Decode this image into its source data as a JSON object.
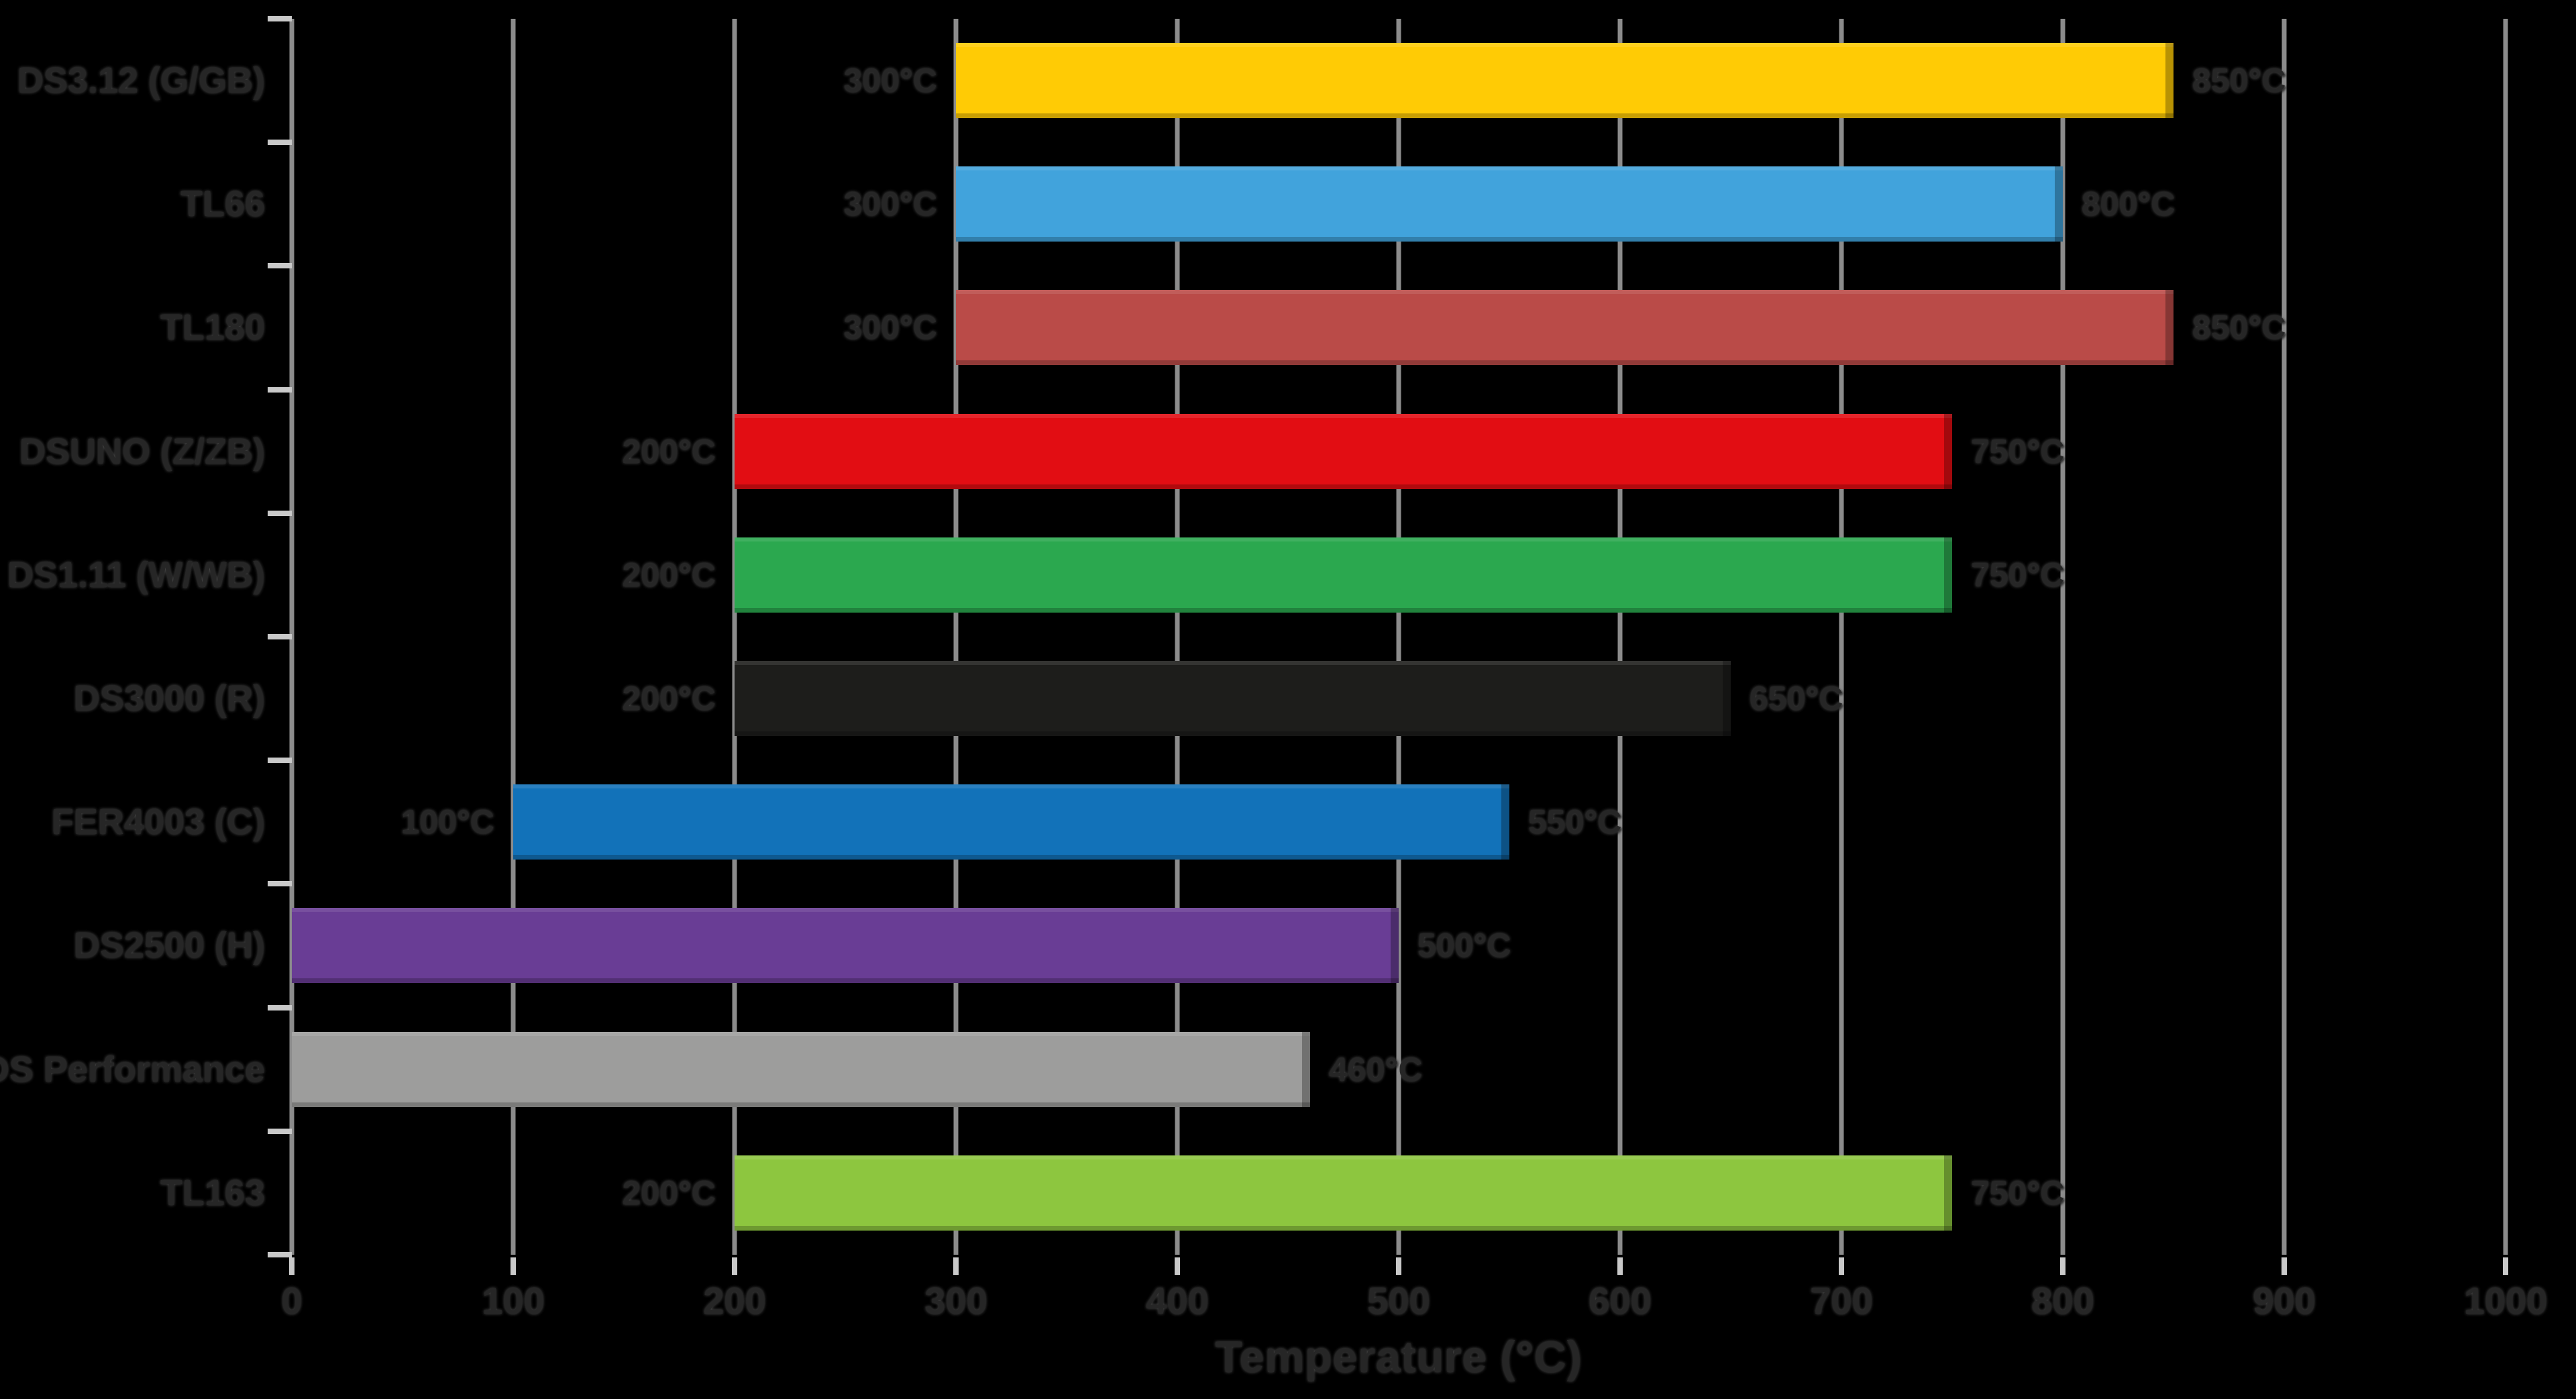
{
  "chart_data": {
    "type": "bar",
    "orientation": "horizontal",
    "title": "",
    "xlabel": "Temperature (°C)",
    "xlim": [
      0,
      1000
    ],
    "x_ticks": [
      "0",
      "100",
      "200",
      "300",
      "400",
      "500",
      "600",
      "700",
      "800",
      "900",
      "1000"
    ],
    "grid": "vertical-gridlines-on",
    "legend": "none",
    "value_suffix": "°C",
    "series": [
      {
        "label": "DS3.12 (G/GB)",
        "min": 300,
        "max": 850,
        "min_label": "300°C",
        "max_label": "850°C",
        "color": "#FFCB05"
      },
      {
        "label": "TL66",
        "min": 300,
        "max": 800,
        "min_label": "300°C",
        "max_label": "800°C",
        "color": "#41A3DC"
      },
      {
        "label": "TL180",
        "min": 300,
        "max": 850,
        "min_label": "300°C",
        "max_label": "850°C",
        "color": "#BA4B48"
      },
      {
        "label": "DSUNO (Z/ZB)",
        "min": 200,
        "max": 750,
        "min_label": "200°C",
        "max_label": "750°C",
        "color": "#E20D13"
      },
      {
        "label": "DS1.11 (W/WB)",
        "min": 200,
        "max": 750,
        "min_label": "200°C",
        "max_label": "750°C",
        "color": "#2BA84F"
      },
      {
        "label": "DS3000 (R)",
        "min": 200,
        "max": 650,
        "min_label": "200°C",
        "max_label": "650°C",
        "color": "#1D1D1B"
      },
      {
        "label": "FER4003 (C)",
        "min": 100,
        "max": 550,
        "min_label": "100°C",
        "max_label": "550°C",
        "color": "#1272B9"
      },
      {
        "label": "DS2500 (H)",
        "min": 0,
        "max": 500,
        "min_label": "",
        "max_label": "500°C",
        "color": "#693D95"
      },
      {
        "label": "DS Performance",
        "min": 0,
        "max": 460,
        "min_label": "",
        "max_label": "460°C",
        "color": "#9D9D9C"
      },
      {
        "label": "TL163",
        "min": 200,
        "max": 750,
        "min_label": "200°C",
        "max_label": "750°C",
        "color": "#8DC63F"
      }
    ],
    "colors": {
      "background": "#000000",
      "gridline": "#8C8C8C",
      "tick": "#C9C9C9",
      "text": "#262626"
    }
  }
}
